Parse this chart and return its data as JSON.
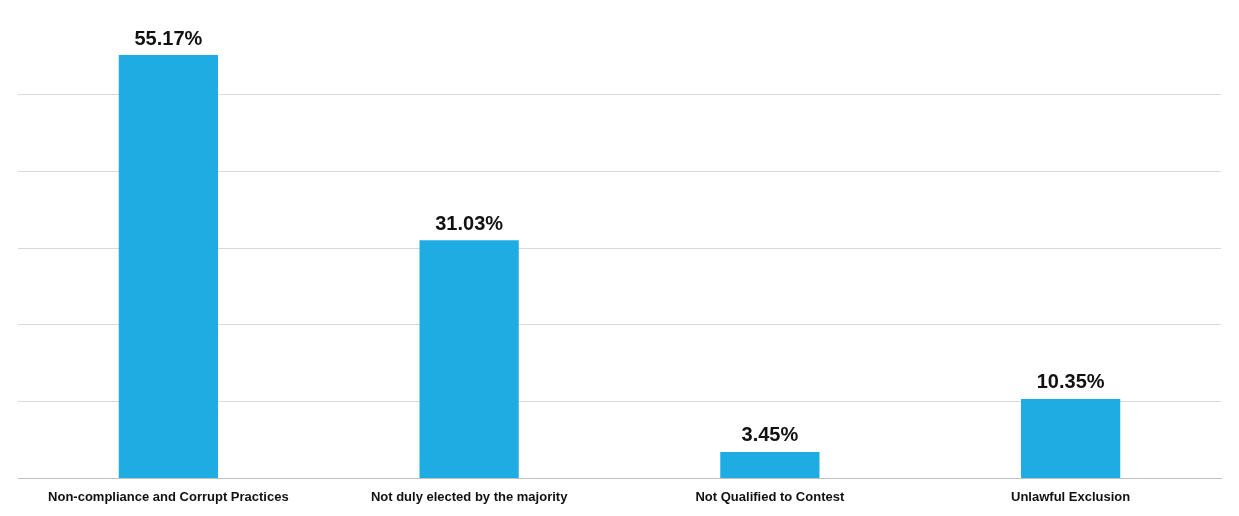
{
  "chart_data": {
    "type": "bar",
    "categories": [
      "Non-compliance and Corrupt Practices",
      "Not duly elected by the majority",
      "Not Qualified to Contest",
      "Unlawful Exclusion"
    ],
    "values": [
      55.17,
      31.03,
      3.45,
      10.35
    ],
    "color": "#1eace3",
    "value_labels": [
      "55.17%",
      "31.03%",
      "3.45%",
      "10.35%"
    ],
    "yticks": [
      {
        "value": 0,
        "label": null
      },
      {
        "value": 10,
        "label": null
      },
      {
        "value": 20,
        "label": null
      },
      {
        "value": 30,
        "label": null
      },
      {
        "value": 40,
        "label": null
      },
      {
        "value": 50,
        "label": null
      }
    ],
    "tick_labels": "x",
    "grid": "y",
    "legend": false
  }
}
